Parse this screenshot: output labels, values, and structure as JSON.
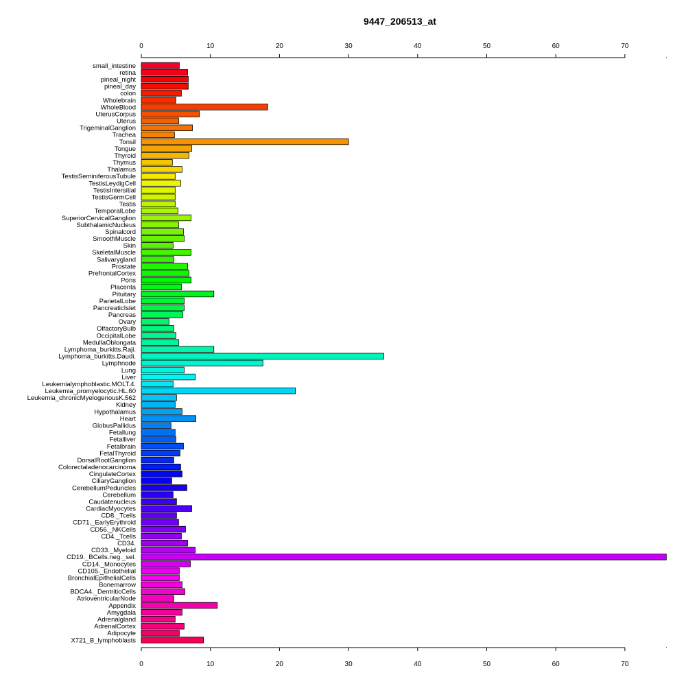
{
  "chart_data": {
    "type": "bar",
    "orientation": "horizontal",
    "title": "9447_206513_at",
    "xlabel": "",
    "ylabel": "",
    "xlim": [
      0,
      76
    ],
    "x_ticks": [
      0,
      10,
      20,
      30,
      40,
      50,
      60,
      70
    ],
    "axes": "top-and-bottom",
    "grid": false,
    "legend": "none",
    "bar_border_color": "#000000",
    "color_scheme": "rainbow",
    "categories": [
      "small_intestine",
      "retina",
      "pineal_night",
      "pineal_day",
      "colon",
      "Wholebrain",
      "WholeBlood",
      "UterusCorpus",
      "Uterus",
      "TrigeminalGanglion",
      "Trachea",
      "Tonsil",
      "Tongue",
      "Thyroid",
      "Thymus",
      "Thalamus",
      "TestisSeminiferousTubule",
      "TestisLeydigCell",
      "TestisIntersitial",
      "TestisGermCell",
      "Testis",
      "TemporalLobe",
      "SuperiorCervicalGanglion",
      "SubthalamicNucleus",
      "Spinalcord",
      "SmoothMuscle",
      "Skin",
      "SkeletalMuscle",
      "Salivarygland",
      "Prostate",
      "PrefrontalCortex",
      "Pons",
      "Placenta",
      "Pituitary",
      "ParietalLobe",
      "PancreaticIslet",
      "Pancreas",
      "Ovary",
      "OlfactoryBulb",
      "OccipitalLobe",
      "MedullaOblongata",
      "Lymphoma_burkitts.Raji.",
      "Lymphoma_burkitts.Daudi.",
      "Lymphnode",
      "Lung",
      "Liver",
      "Leukemialymphoblastic.MOLT.4.",
      "Leukemia_promyelocytic.HL.60",
      "Leukemia_chronicMyelogenousK.562",
      "Kidney",
      "Hypothalamus",
      "Heart",
      "GlobusPallidus",
      "Fetallung",
      "Fetalliver",
      "Fetalbrain",
      "FetalThyroid",
      "DorsalRootGanglion",
      "Colorectaladenocarcinoma",
      "CingulateCortex",
      "CiliaryGanglion",
      "CerebellumPeduncles",
      "Cerebellum",
      "Caudatenucleus",
      "CardiacMyocytes",
      "CD8._Tcells",
      "CD71._EarlyErythroid",
      "CD56._NKCells",
      "CD4._Tcells",
      "CD34.",
      "CD33._Myeloid",
      "CD19._BCells.neg._sel.",
      "CD14._Monocytes",
      "CD105._Endothelial",
      "BronchialEpithelialCells",
      "Bonemarrow",
      "BDCA4._DentriticCells",
      "AtrioventricularNode",
      "Appendix",
      "Amygdala",
      "Adrenalgland",
      "AdrenalCortex",
      "Adipocyte",
      "X721_B_lymphoblasts"
    ],
    "values": [
      5.5,
      6.7,
      6.8,
      6.8,
      5.8,
      5.0,
      18.3,
      8.4,
      5.4,
      7.4,
      4.8,
      30.0,
      7.3,
      6.9,
      4.5,
      5.9,
      4.9,
      5.7,
      4.9,
      4.9,
      4.9,
      5.3,
      7.2,
      5.4,
      6.1,
      6.2,
      4.6,
      7.2,
      4.7,
      6.7,
      6.9,
      7.2,
      5.8,
      10.5,
      6.2,
      6.2,
      6.0,
      4.0,
      4.7,
      5.0,
      5.4,
      10.5,
      35.1,
      17.6,
      6.2,
      7.8,
      4.6,
      22.3,
      5.1,
      4.9,
      5.9,
      7.9,
      4.3,
      4.9,
      5.0,
      6.1,
      5.6,
      4.7,
      5.7,
      5.9,
      4.4,
      6.6,
      4.6,
      5.1,
      7.3,
      5.1,
      5.4,
      6.4,
      5.8,
      6.7,
      7.8,
      76.0,
      7.1,
      5.5,
      5.5,
      5.9,
      6.3,
      4.7,
      11.0,
      5.9,
      4.9,
      6.2,
      5.5,
      9.0
    ]
  }
}
